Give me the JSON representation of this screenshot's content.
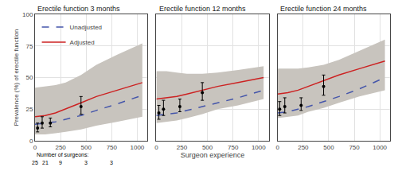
{
  "chart_data": [
    {
      "type": "line",
      "title": "Erectile function 3 months",
      "y_label": "Prevalence (%) of erectile function",
      "x": [
        0,
        100,
        200,
        300,
        450,
        600,
        800,
        1050
      ],
      "series": [
        {
          "name": "Unadjusted",
          "color": "#4455aa",
          "line_style": "dashed",
          "values": [
            13,
            14,
            15,
            17,
            20,
            24,
            29,
            36
          ]
        },
        {
          "name": "Adjusted",
          "color": "#cc2222",
          "line_style": "solid",
          "values": [
            19,
            20,
            22,
            25,
            30,
            35,
            40,
            46
          ]
        }
      ],
      "ci": {
        "color": "#c8c4be",
        "lower": [
          5,
          5,
          6,
          7,
          9,
          12,
          15,
          19
        ],
        "upper": [
          42,
          43,
          44,
          46,
          52,
          60,
          68,
          77
        ]
      },
      "points": {
        "color": "black",
        "marker": "circle",
        "x": [
          25,
          70,
          150,
          450
        ],
        "values": [
          10,
          14,
          14,
          27
        ],
        "error_low": [
          3,
          4,
          3,
          6
        ],
        "error_high": [
          4,
          5,
          4,
          8
        ]
      },
      "surgeon_counts": {
        "label": "Number of surgeons:",
        "x": [
          0,
          100,
          250,
          500,
          750
        ],
        "values": [
          25,
          21,
          9,
          3,
          3
        ]
      },
      "xlim": [
        0,
        1100
      ],
      "xticks": [
        0,
        250,
        500,
        750,
        1000
      ],
      "ylim": [
        0,
        100
      ],
      "yticks": [
        0,
        25,
        50,
        75,
        100
      ],
      "grid": true,
      "legend": "upper left"
    },
    {
      "type": "line",
      "title": "Erectile function 12 months",
      "x_label": "Surgeon experience",
      "x": [
        0,
        100,
        200,
        300,
        450,
        600,
        800,
        1050
      ],
      "series": [
        {
          "name": "Unadjusted",
          "color": "#4455aa",
          "line_style": "dashed",
          "values": [
            20,
            21,
            22,
            24,
            27,
            30,
            34,
            40
          ]
        },
        {
          "name": "Adjusted",
          "color": "#cc2222",
          "line_style": "solid",
          "values": [
            33,
            34,
            35,
            37,
            40,
            43,
            46,
            50
          ]
        }
      ],
      "ci": {
        "color": "#c8c4be",
        "lower": [
          14,
          15,
          16,
          18,
          21,
          25,
          28,
          33
        ],
        "upper": [
          55,
          55,
          54,
          53,
          53,
          54,
          56,
          59
        ]
      },
      "points": {
        "color": "black",
        "marker": "circle",
        "x": [
          25,
          70,
          230,
          450
        ],
        "values": [
          22,
          25,
          27,
          38
        ],
        "error_low": [
          5,
          5,
          4,
          6
        ],
        "error_high": [
          6,
          7,
          6,
          8
        ]
      },
      "xlim": [
        0,
        1100
      ],
      "xticks": [
        0,
        250,
        500,
        750,
        1000
      ],
      "ylim": [
        0,
        100
      ],
      "yticks": [
        0,
        25,
        50,
        75,
        100
      ],
      "grid": true,
      "tick_labels": "x"
    },
    {
      "type": "line",
      "title": "Erectile function 24 months",
      "x": [
        0,
        100,
        200,
        300,
        450,
        600,
        800,
        1050
      ],
      "series": [
        {
          "name": "Unadjusted",
          "color": "#4455aa",
          "line_style": "dashed",
          "values": [
            22,
            23,
            25,
            27,
            31,
            35,
            41,
            50
          ]
        },
        {
          "name": "Adjusted",
          "color": "#cc2222",
          "line_style": "solid",
          "values": [
            37,
            38,
            40,
            43,
            47,
            52,
            57,
            63
          ]
        }
      ],
      "ci": {
        "color": "#c8c4be",
        "lower": [
          18,
          19,
          20,
          23,
          26,
          30,
          35,
          40
        ],
        "upper": [
          57,
          57,
          57,
          58,
          60,
          64,
          71,
          80
        ]
      },
      "points": {
        "color": "black",
        "marker": "circle",
        "x": [
          20,
          70,
          230,
          450
        ],
        "values": [
          25,
          27,
          28,
          43
        ],
        "error_low": [
          5,
          5,
          4,
          7
        ],
        "error_high": [
          6,
          7,
          6,
          9
        ]
      },
      "xlim": [
        0,
        1100
      ],
      "xticks": [
        0,
        250,
        500,
        750,
        1000
      ],
      "ylim": [
        0,
        100
      ],
      "yticks": [
        0,
        25,
        50,
        75,
        100
      ],
      "grid": true,
      "tick_labels": "x"
    }
  ]
}
